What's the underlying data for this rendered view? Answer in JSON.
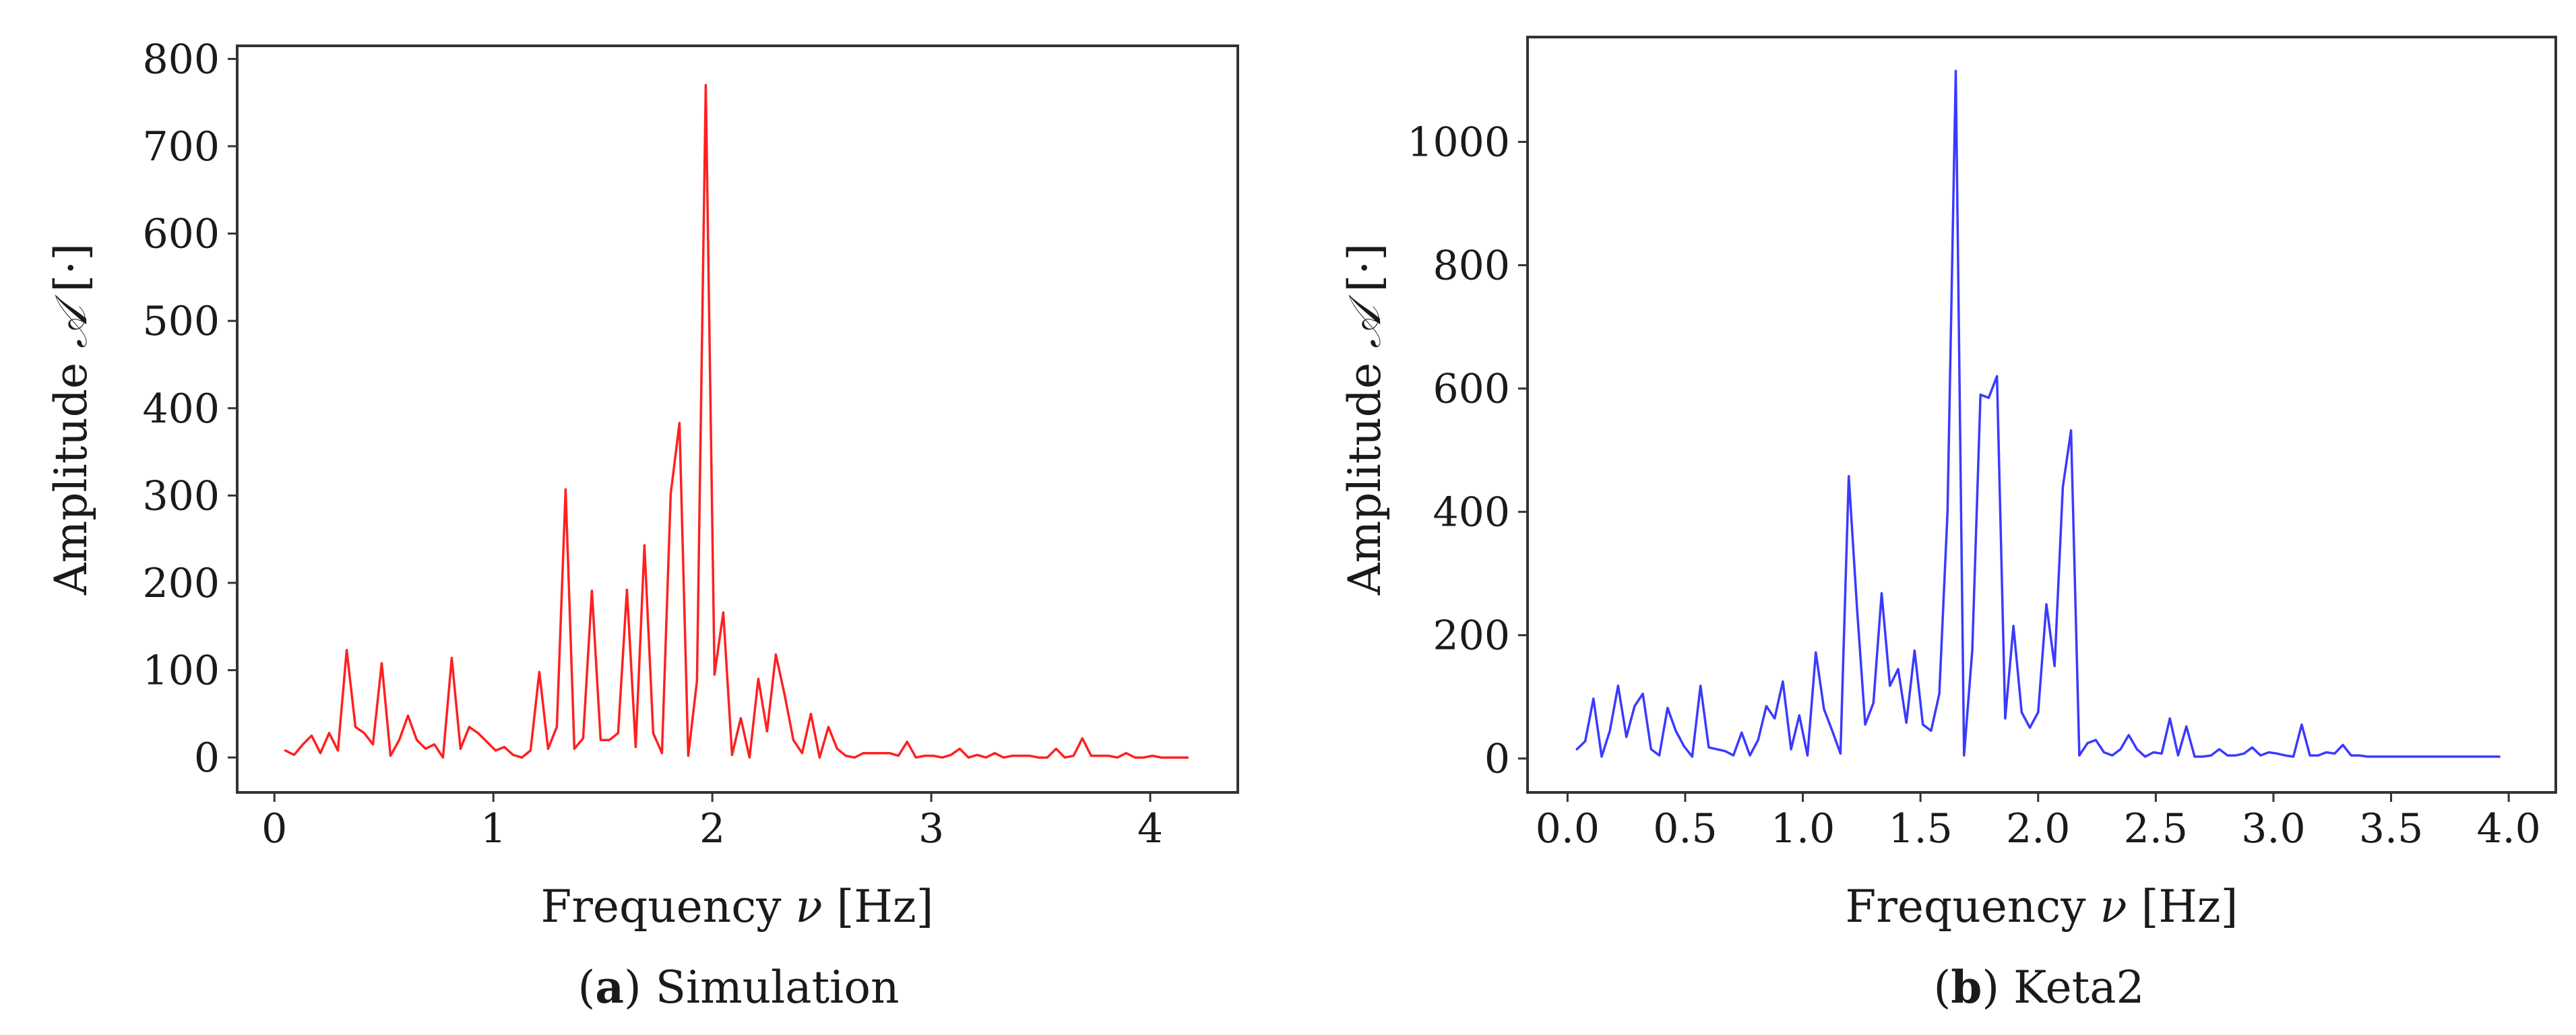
{
  "chart_data": [
    {
      "type": "line",
      "panel": "a",
      "caption_letter": "a",
      "caption_text": "Simulation",
      "xlabel_prefix": "Frequency ",
      "xlabel_symbol": "ν",
      "xlabel_suffix": " [Hz]",
      "ylabel_prefix": "Amplitude ",
      "ylabel_symbol": "𝒜",
      "ylabel_suffix": " [·]",
      "xlim": [
        -0.17,
        4.4
      ],
      "ylim": [
        -40,
        815
      ],
      "xticks": [
        0,
        1,
        2,
        3,
        4
      ],
      "xtick_labels": [
        "0",
        "1",
        "2",
        "3",
        "4"
      ],
      "yticks": [
        0,
        100,
        200,
        300,
        400,
        500,
        600,
        700,
        800
      ],
      "ytick_labels": [
        "0",
        "100",
        "200",
        "300",
        "400",
        "500",
        "600",
        "700",
        "800"
      ],
      "grid": false,
      "color": "#ff2020",
      "series": [
        {
          "name": "Simulation",
          "x": [
            0.05,
            0.09,
            0.13,
            0.17,
            0.21,
            0.25,
            0.29,
            0.33,
            0.37,
            0.41,
            0.45,
            0.49,
            0.53,
            0.57,
            0.61,
            0.65,
            0.69,
            0.73,
            0.77,
            0.81,
            0.85,
            0.89,
            0.93,
            0.97,
            1.01,
            1.05,
            1.09,
            1.13,
            1.17,
            1.21,
            1.25,
            1.29,
            1.33,
            1.37,
            1.41,
            1.45,
            1.49,
            1.53,
            1.57,
            1.61,
            1.65,
            1.69,
            1.73,
            1.77,
            1.81,
            1.85,
            1.89,
            1.93,
            1.97,
            2.01,
            2.05,
            2.09,
            2.13,
            2.17,
            2.21,
            2.25,
            2.29,
            2.33,
            2.37,
            2.41,
            2.45,
            2.49,
            2.53,
            2.57,
            2.61,
            2.65,
            2.69,
            2.73,
            2.77,
            2.81,
            2.85,
            2.89,
            2.93,
            2.97,
            3.01,
            3.05,
            3.09,
            3.13,
            3.17,
            3.21,
            3.25,
            3.29,
            3.33,
            3.37,
            3.41,
            3.45,
            3.49,
            3.53,
            3.57,
            3.61,
            3.65,
            3.69,
            3.73,
            3.77,
            3.81,
            3.85,
            3.89,
            3.93,
            3.97,
            4.01,
            4.05,
            4.09,
            4.13,
            4.17
          ],
          "values": [
            8,
            3,
            15,
            25,
            5,
            28,
            8,
            123,
            35,
            28,
            15,
            108,
            2,
            20,
            48,
            20,
            10,
            15,
            0,
            114,
            10,
            35,
            28,
            18,
            8,
            12,
            3,
            0,
            8,
            98,
            10,
            35,
            307,
            10,
            22,
            191,
            20,
            20,
            28,
            192,
            12,
            243,
            28,
            5,
            302,
            383,
            2,
            88,
            770,
            95,
            166,
            3,
            45,
            0,
            90,
            30,
            118,
            72,
            20,
            5,
            50,
            0,
            35,
            10,
            2,
            0,
            5,
            5,
            5,
            5,
            2,
            18,
            0,
            2,
            2,
            0,
            3,
            10,
            0,
            3,
            0,
            5,
            0,
            2,
            2,
            2,
            0,
            0,
            10,
            0,
            2,
            22,
            2,
            2,
            2,
            0,
            5,
            0,
            0,
            2,
            0,
            0,
            0,
            0
          ]
        }
      ]
    },
    {
      "type": "line",
      "panel": "b",
      "caption_letter": "b",
      "caption_text": "Keta2",
      "xlabel_prefix": "Frequency ",
      "xlabel_symbol": "ν",
      "xlabel_suffix": " [Hz]",
      "ylabel_prefix": "Amplitude ",
      "ylabel_symbol": "𝒜",
      "ylabel_suffix": " [·]",
      "xlim": [
        -0.17,
        4.2
      ],
      "ylim": [
        -55,
        1170
      ],
      "xticks": [
        0.0,
        0.5,
        1.0,
        1.5,
        2.0,
        2.5,
        3.0,
        3.5,
        4.0
      ],
      "xtick_labels": [
        "0.0",
        "0.5",
        "1.0",
        "1.5",
        "2.0",
        "2.5",
        "3.0",
        "3.5",
        "4.0"
      ],
      "yticks": [
        0,
        200,
        400,
        600,
        800,
        1000
      ],
      "ytick_labels": [
        "0",
        "200",
        "400",
        "600",
        "800",
        "1000"
      ],
      "grid": false,
      "color": "#3a3aff",
      "series": [
        {
          "name": "Keta2",
          "x": [
            0.04,
            0.075,
            0.11,
            0.145,
            0.18,
            0.215,
            0.25,
            0.285,
            0.32,
            0.355,
            0.39,
            0.425,
            0.46,
            0.495,
            0.53,
            0.565,
            0.6,
            0.635,
            0.67,
            0.705,
            0.74,
            0.775,
            0.81,
            0.845,
            0.88,
            0.915,
            0.95,
            0.985,
            1.02,
            1.055,
            1.09,
            1.125,
            1.16,
            1.195,
            1.23,
            1.265,
            1.3,
            1.335,
            1.37,
            1.405,
            1.44,
            1.475,
            1.51,
            1.545,
            1.58,
            1.615,
            1.65,
            1.685,
            1.72,
            1.755,
            1.79,
            1.825,
            1.86,
            1.895,
            1.93,
            1.965,
            2.0,
            2.035,
            2.07,
            2.105,
            2.14,
            2.175,
            2.21,
            2.245,
            2.28,
            2.315,
            2.35,
            2.385,
            2.42,
            2.455,
            2.49,
            2.525,
            2.56,
            2.595,
            2.63,
            2.665,
            2.7,
            2.735,
            2.77,
            2.805,
            2.84,
            2.875,
            2.91,
            2.945,
            2.98,
            3.015,
            3.05,
            3.085,
            3.12,
            3.155,
            3.19,
            3.225,
            3.26,
            3.295,
            3.33,
            3.365,
            3.4,
            3.435,
            3.47,
            3.505,
            3.54,
            3.575,
            3.61,
            3.645,
            3.68,
            3.715,
            3.75,
            3.785,
            3.82,
            3.855,
            3.89,
            3.925,
            3.96
          ],
          "values": [
            15,
            28,
            97,
            3,
            45,
            118,
            35,
            85,
            105,
            15,
            5,
            82,
            45,
            20,
            3,
            118,
            18,
            15,
            12,
            5,
            42,
            5,
            30,
            85,
            65,
            125,
            15,
            70,
            5,
            172,
            80,
            45,
            8,
            458,
            245,
            55,
            90,
            268,
            118,
            145,
            58,
            175,
            55,
            45,
            105,
            400,
            1115,
            5,
            175,
            590,
            585,
            620,
            65,
            215,
            75,
            50,
            75,
            250,
            150,
            440,
            532,
            5,
            25,
            30,
            10,
            5,
            15,
            38,
            15,
            3,
            10,
            8,
            65,
            5,
            52,
            3,
            3,
            5,
            15,
            5,
            5,
            8,
            18,
            5,
            10,
            8,
            5,
            3,
            55,
            5,
            5,
            10,
            8,
            22,
            5,
            5,
            3,
            3,
            3,
            3,
            3,
            3,
            3,
            3,
            3,
            3,
            3,
            3,
            3,
            3,
            3,
            3,
            3
          ]
        }
      ]
    }
  ]
}
